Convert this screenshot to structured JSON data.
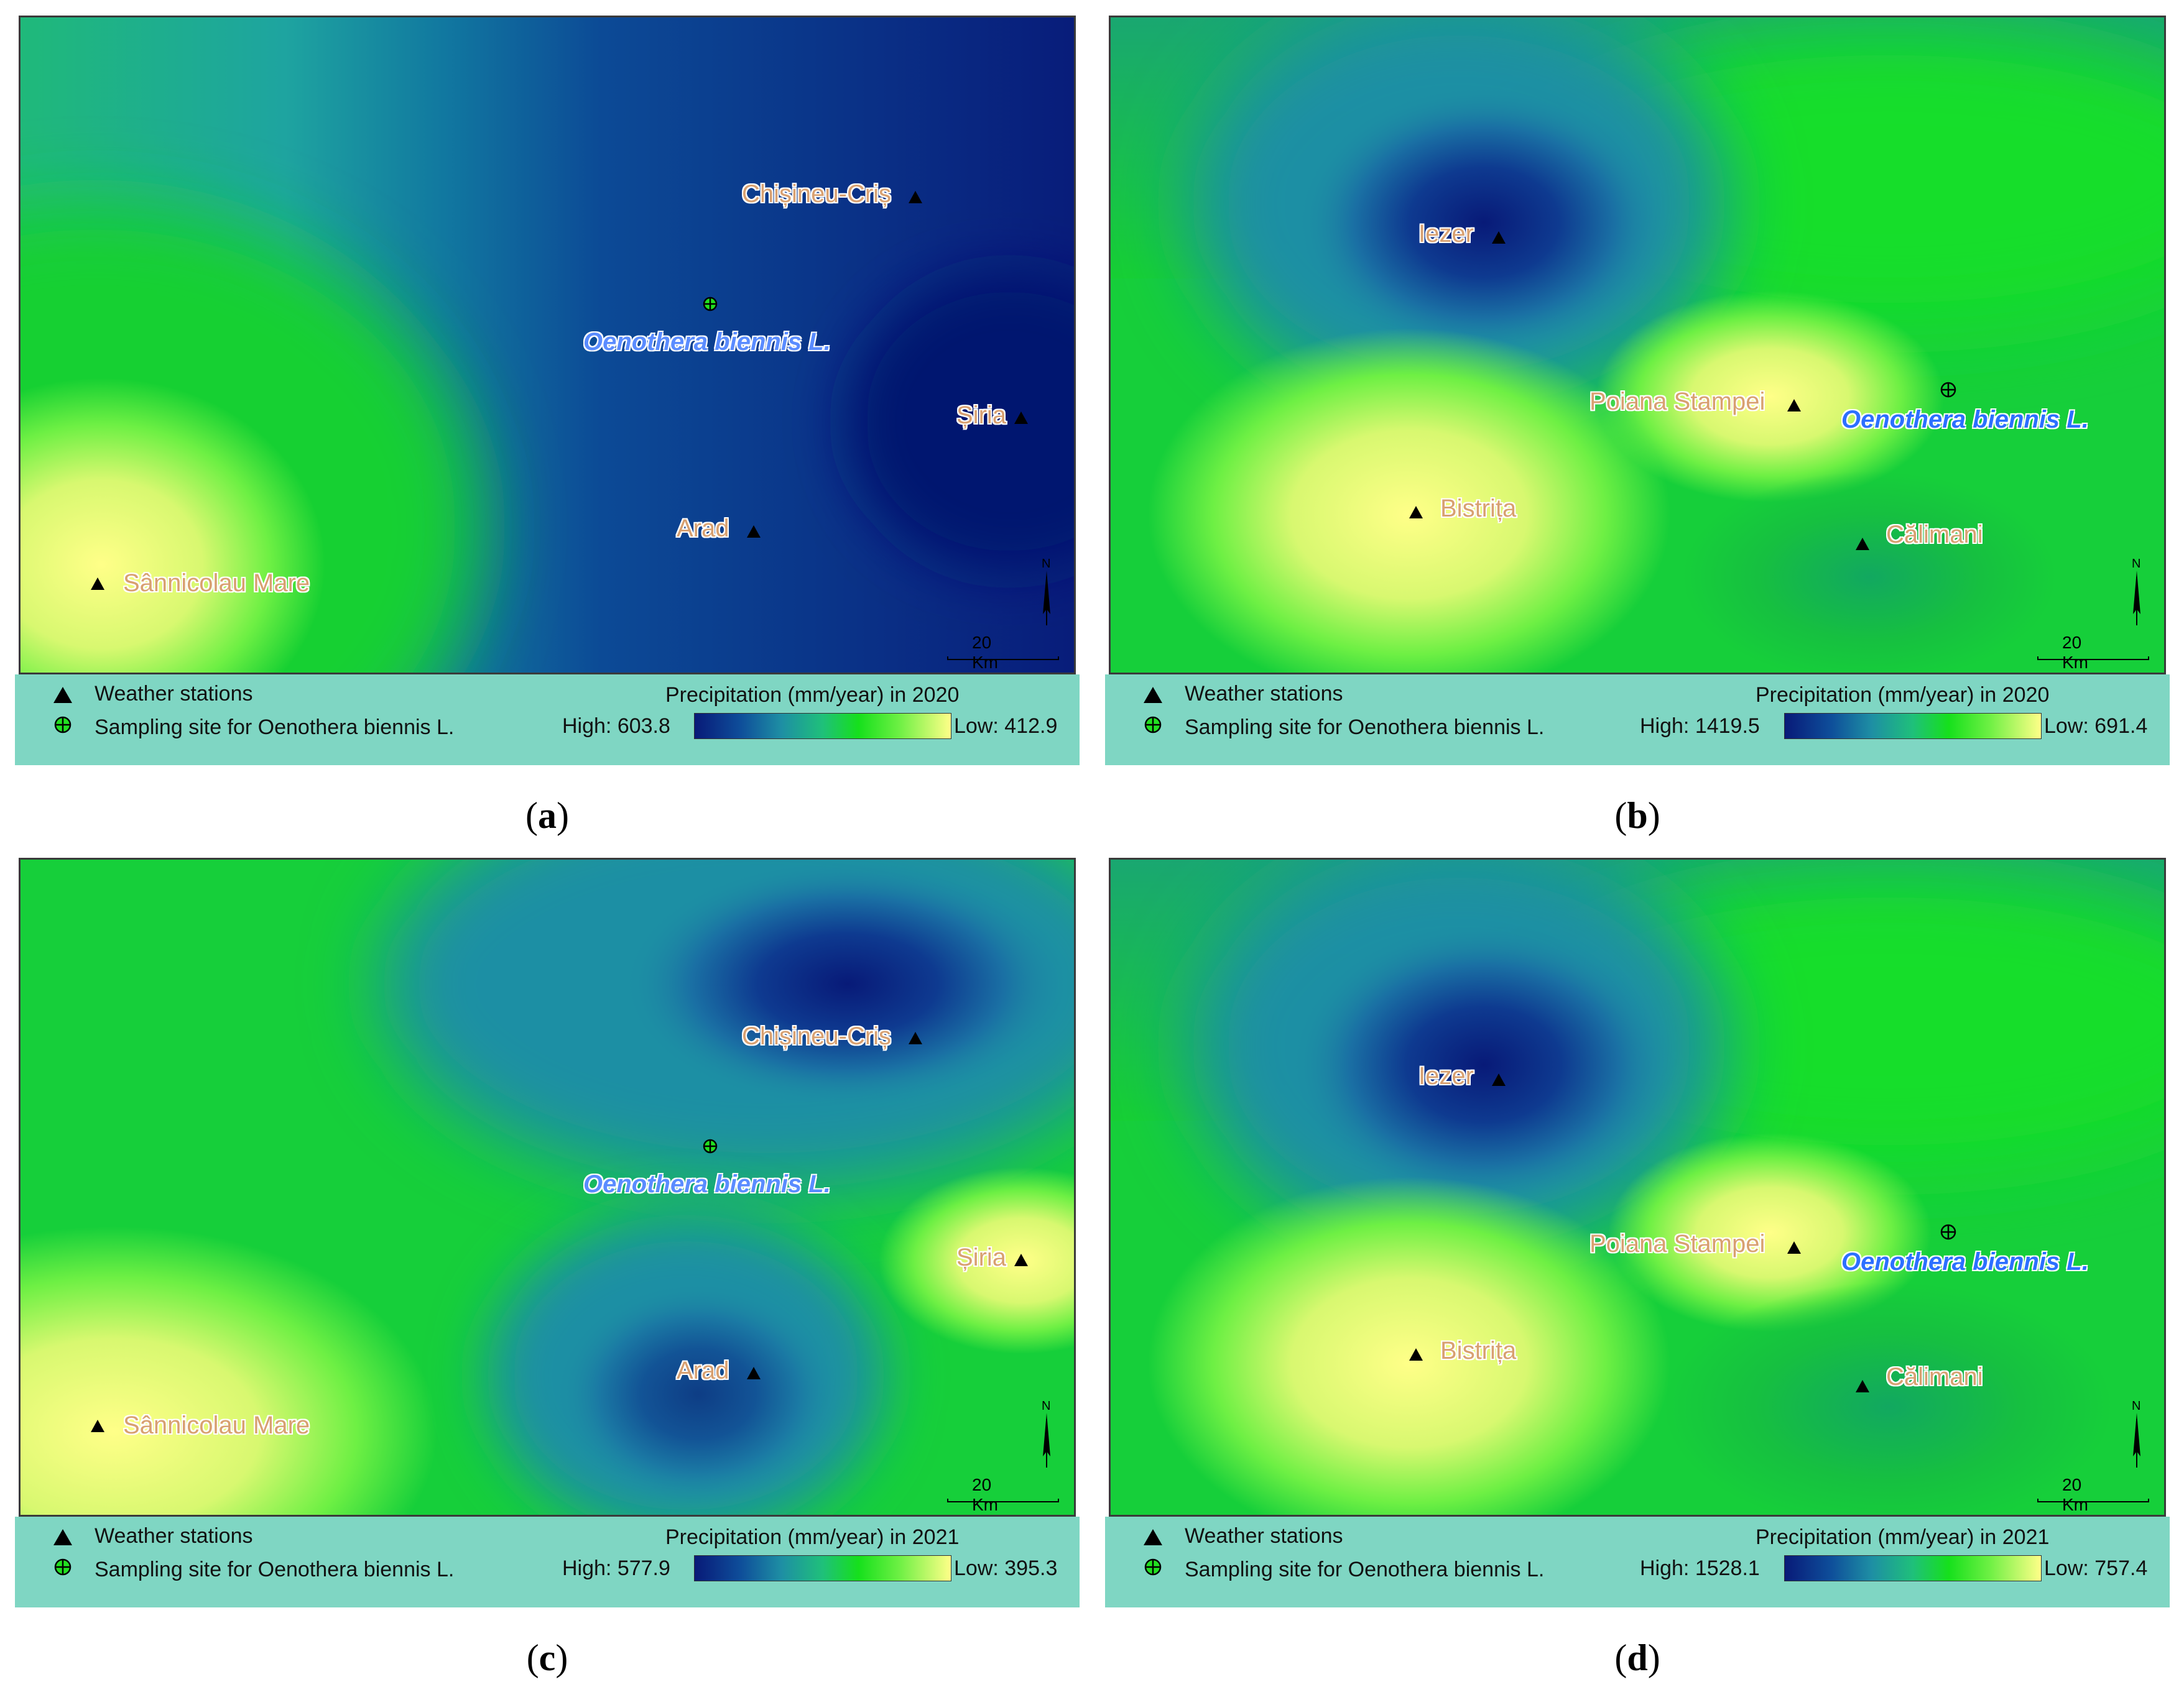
{
  "legend_common": {
    "stations_label": "Weather stations",
    "site_label": "Sampling site for Oenothera biennis L."
  },
  "colors": {
    "low_yellow": "#ffff88",
    "green": "#16e01c",
    "teal": "#1e8fa4",
    "deep_blue": "#081a78",
    "legend_bg": "#7fd6c3",
    "site_label": "#5a8cff",
    "station_label": "#d8a070"
  },
  "panels": [
    {
      "caption": "a",
      "legend_title": "Precipitation (mm/year) in 2020",
      "high_label": "High: 603.8",
      "low_label": "Low: 412.9",
      "site_name": "Oenothera biennis L.",
      "scale_label": "20 Km",
      "north_label": "N",
      "stations": [
        "Chișineu-Criș",
        "Șiria",
        "Arad",
        "Sânnicolau Mare"
      ]
    },
    {
      "caption": "b",
      "legend_title": "Precipitation (mm/year) in 2020",
      "high_label": "High: 1419.5",
      "low_label": "Low: 691.4",
      "site_name": "Oenothera biennis L.",
      "scale_label": "20 Km",
      "north_label": "N",
      "stations": [
        "Iezer",
        "Poiana Stampei",
        "Bistrița",
        "Călimani"
      ]
    },
    {
      "caption": "c",
      "legend_title": "Precipitation (mm/year) in 2021",
      "high_label": "High: 577.9",
      "low_label": "Low: 395.3",
      "site_name": "Oenothera biennis L.",
      "scale_label": "20 Km",
      "north_label": "N",
      "stations": [
        "Chișineu-Criș",
        "Șiria",
        "Arad",
        "Sânnicolau Mare"
      ]
    },
    {
      "caption": "d",
      "legend_title": "Precipitation (mm/year) in 2021",
      "high_label": "High: 1528.1",
      "low_label": "Low: 757.4",
      "site_name": "Oenothera biennis L.",
      "scale_label": "20 Km",
      "north_label": "N",
      "stations": [
        "Iezer",
        "Poiana Stampei",
        "Bistrița",
        "Călimani"
      ]
    }
  ]
}
